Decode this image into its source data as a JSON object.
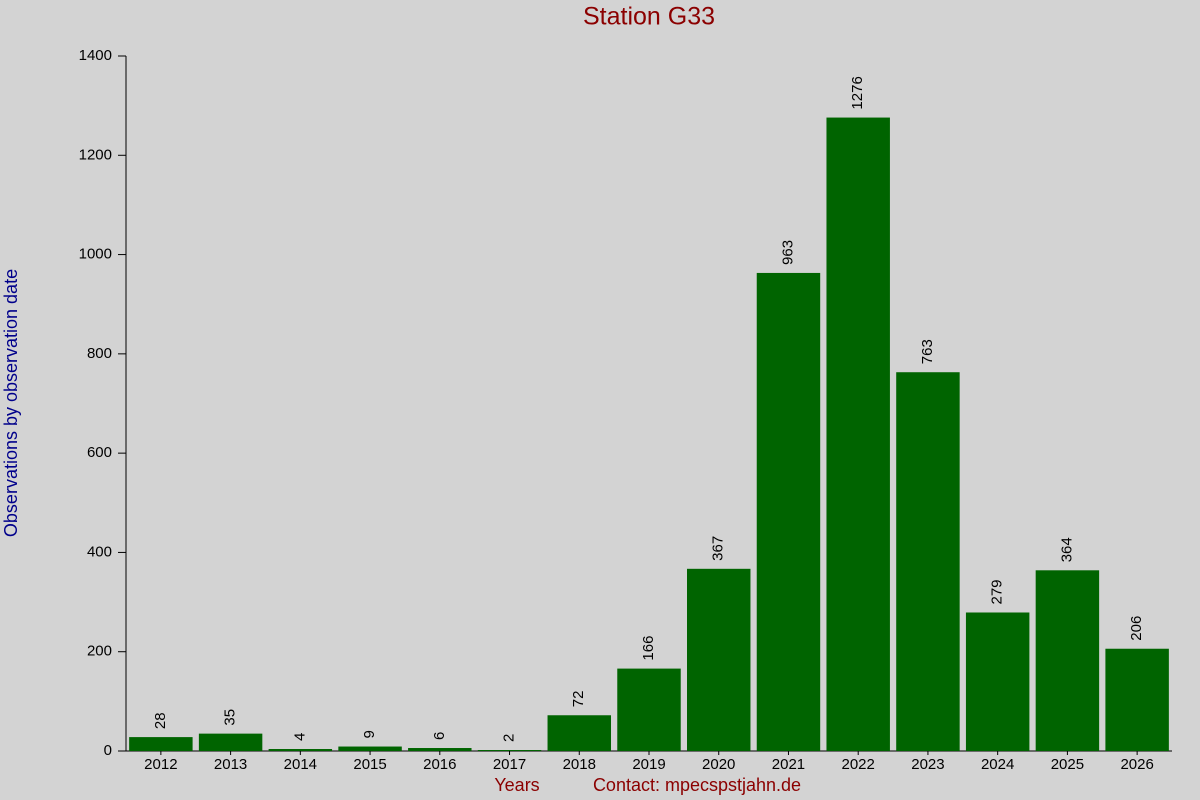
{
  "chart_data": {
    "type": "bar",
    "title": "Station G33",
    "x_label": "Years",
    "y_label": "Observations by observation date",
    "footer": "Contact: mpecspstjahn.de",
    "categories": [
      "2012",
      "2013",
      "2014",
      "2015",
      "2016",
      "2017",
      "2018",
      "2019",
      "2020",
      "2021",
      "2022",
      "2023",
      "2024",
      "2025",
      "2026"
    ],
    "values": [
      28,
      35,
      4,
      9,
      6,
      2,
      72,
      166,
      367,
      963,
      1276,
      763,
      279,
      364,
      206
    ],
    "color": "#006400",
    "ylim": [
      0,
      1400
    ],
    "yticks": [
      0,
      200,
      400,
      600,
      800,
      1000,
      1200,
      1400
    ],
    "grid": false
  }
}
